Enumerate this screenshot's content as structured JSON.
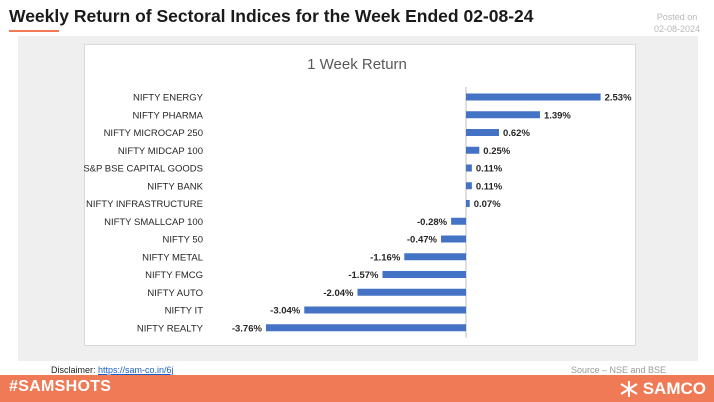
{
  "header": {
    "title": "Weekly Return of Sectoral Indices for the Week Ended 02-08-24",
    "posted_label": "Posted on",
    "posted_date": "02-08-2024"
  },
  "chart_data": {
    "type": "bar",
    "orientation": "horizontal",
    "title": "1 Week Return",
    "unit": "%",
    "categories": [
      "NIFTY ENERGY",
      "NIFTY PHARMA",
      "NIFTY MICROCAP 250",
      "NIFTY MIDCAP 100",
      "S&P BSE CAPITAL GOODS",
      "NIFTY BANK",
      "NIFTY INFRASTRUCTURE",
      "NIFTY SMALLCAP 100",
      "NIFTY 50",
      "NIFTY METAL",
      "NIFTY FMCG",
      "NIFTY AUTO",
      "NIFTY IT",
      "NIFTY REALTY"
    ],
    "values": [
      2.53,
      1.39,
      0.62,
      0.25,
      0.11,
      0.11,
      0.07,
      -0.28,
      -0.47,
      -1.16,
      -1.57,
      -2.04,
      -3.04,
      -3.76
    ],
    "labels": [
      "2.53%",
      "1.39%",
      "0.62%",
      "0.25%",
      "0.11%",
      "0.11%",
      "0.07%",
      "-0.28%",
      "-0.47%",
      "-1.16%",
      "-1.57%",
      "-2.04%",
      "-3.04%",
      "-3.76%"
    ],
    "xlim": [
      -4,
      3
    ],
    "grid": false,
    "bar_color": "#4472c4"
  },
  "footer": {
    "disclaimer_label": "Disclaimer: ",
    "disclaimer_link": "https://sam-co.in/6j",
    "source": "Source – NSE and BSE",
    "hashtag": "#SAMSHOTS",
    "brand": "SAMCO"
  },
  "colors": {
    "accent": "#f07a55",
    "bar": "#4472c4"
  }
}
